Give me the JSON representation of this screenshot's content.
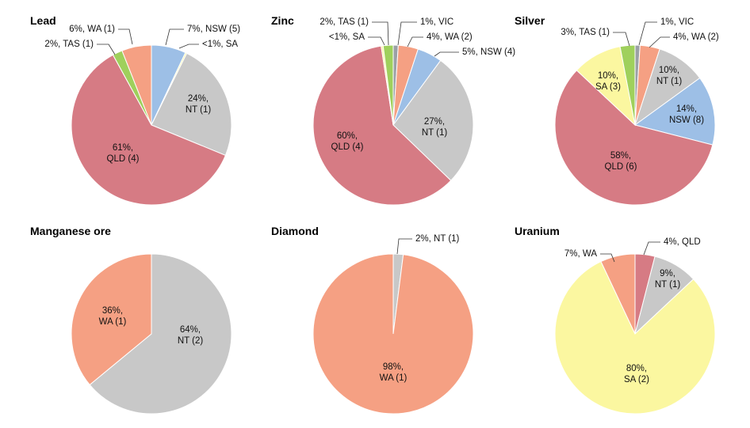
{
  "colors": {
    "QLD": "#d67b84",
    "NT": "#c8c8c8",
    "WA": "#f5a083",
    "NSW": "#9dbfe6",
    "TAS": "#9fd05c",
    "SA": "#fbf7a0",
    "VIC": "#9ba0a6"
  },
  "chart_data": [
    {
      "type": "pie",
      "title": "Lead",
      "slices": [
        {
          "key": "NSW",
          "value": 7,
          "label": "7%, NSW (5)"
        },
        {
          "key": "SA",
          "value": 0.3,
          "label": "<1%, SA"
        },
        {
          "key": "NT",
          "value": 24,
          "label": "24%,\nNT (1)"
        },
        {
          "key": "QLD",
          "value": 61,
          "label": "61%,\nQLD (4)"
        },
        {
          "key": "TAS",
          "value": 2,
          "label": "2%, TAS (1)"
        },
        {
          "key": "WA",
          "value": 6,
          "label": "6%, WA (1)"
        }
      ]
    },
    {
      "type": "pie",
      "title": "Zinc",
      "slices": [
        {
          "key": "VIC",
          "value": 1,
          "label": "1%, VIC"
        },
        {
          "key": "WA",
          "value": 4,
          "label": "4%, WA (2)"
        },
        {
          "key": "NSW",
          "value": 5,
          "label": "5%, NSW (4)"
        },
        {
          "key": "NT",
          "value": 27,
          "label": "27%,\nNT (1)"
        },
        {
          "key": "QLD",
          "value": 60,
          "label": "60%,\nQLD (4)"
        },
        {
          "key": "SA",
          "value": 0.4,
          "label": "<1%, SA"
        },
        {
          "key": "TAS",
          "value": 2,
          "label": "2%, TAS (1)"
        }
      ]
    },
    {
      "type": "pie",
      "title": "Silver",
      "slices": [
        {
          "key": "VIC",
          "value": 1,
          "label": "1%, VIC"
        },
        {
          "key": "WA",
          "value": 4,
          "label": "4%, WA (2)"
        },
        {
          "key": "NT",
          "value": 10,
          "label": "10%,\nNT (1)"
        },
        {
          "key": "NSW",
          "value": 14,
          "label": "14%,\nNSW (8)"
        },
        {
          "key": "QLD",
          "value": 58,
          "label": "58%,\nQLD (6)"
        },
        {
          "key": "SA",
          "value": 10,
          "label": "10%,\nSA (3)"
        },
        {
          "key": "TAS",
          "value": 3,
          "label": "3%, TAS (1)"
        }
      ]
    },
    {
      "type": "pie",
      "title": "Manganese ore",
      "slices": [
        {
          "key": "NT",
          "value": 64,
          "label": "64%,\nNT (2)"
        },
        {
          "key": "WA",
          "value": 36,
          "label": "36%,\nWA (1)"
        }
      ]
    },
    {
      "type": "pie",
      "title": "Diamond",
      "slices": [
        {
          "key": "NT",
          "value": 2,
          "label": "2%, NT (1)"
        },
        {
          "key": "WA",
          "value": 98,
          "label": "98%,\nWA (1)"
        }
      ]
    },
    {
      "type": "pie",
      "title": "Uranium",
      "slices": [
        {
          "key": "QLD",
          "value": 4,
          "label": "4%, QLD"
        },
        {
          "key": "NT",
          "value": 9,
          "label": "9%,\nNT (1)"
        },
        {
          "key": "SA",
          "value": 80,
          "label": "80%,\nSA (2)"
        },
        {
          "key": "WA",
          "value": 7,
          "label": "7%, WA"
        }
      ]
    }
  ]
}
